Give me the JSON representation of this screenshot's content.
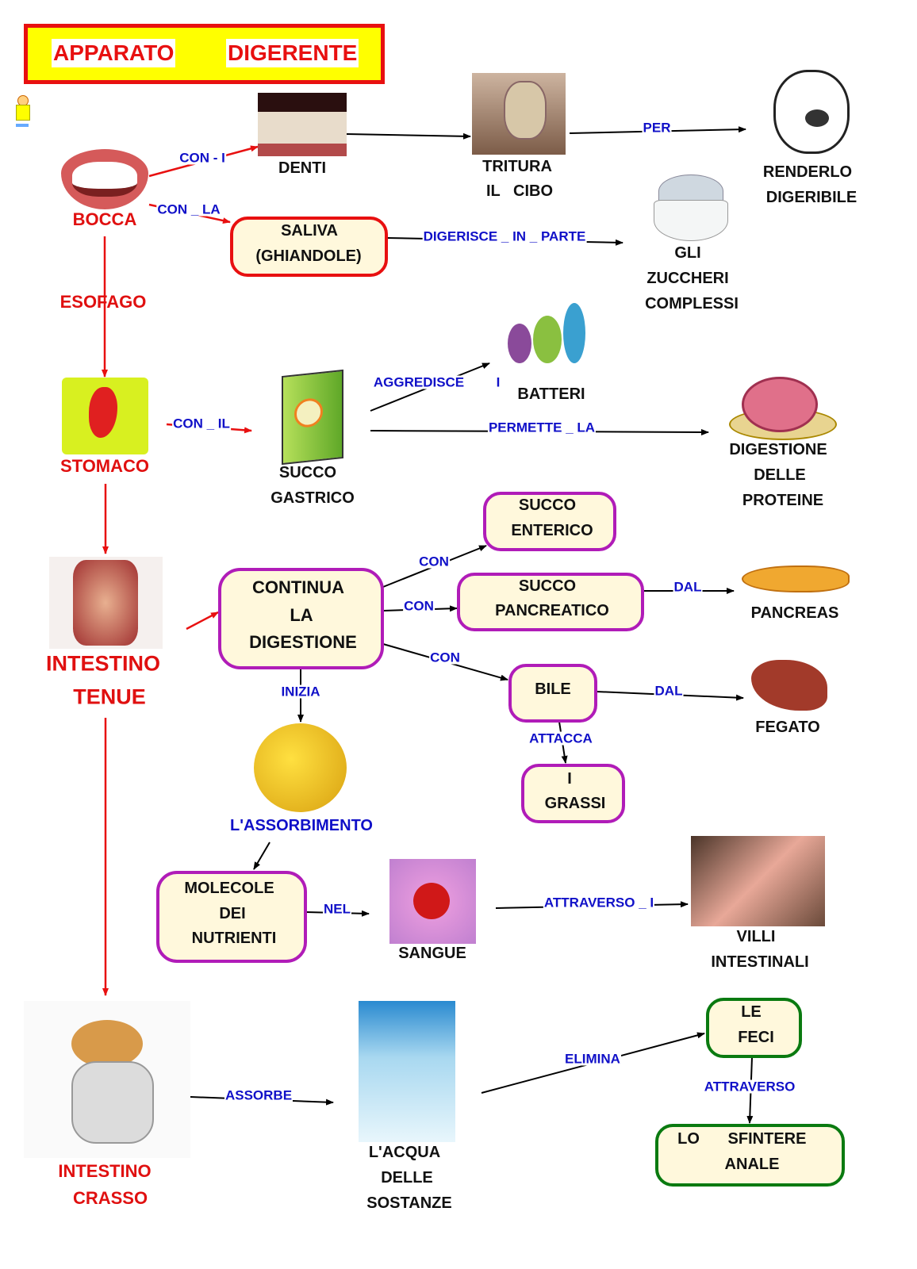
{
  "title": {
    "word1": "APPARATO",
    "word2": "DIGERENTE"
  },
  "colors": {
    "organ_text": "#e01010",
    "link_text": "#1010c8",
    "title_fill": "#ffff00",
    "title_border": "#e81010",
    "box_red": "#e81010",
    "box_purple": "#b01cb8",
    "box_green": "#0a7a10",
    "box_fill": "#fff8dc"
  },
  "icons": [
    "mascot-icon",
    "mouth-image",
    "teeth-image",
    "millstone-image",
    "stressed-face-image",
    "sugar-bowl-image",
    "stomach-image",
    "juice-box-image",
    "bacteria-image",
    "ham-image",
    "small-intestine-image",
    "pancreas-image",
    "liver-image",
    "sponge-image",
    "blood-cells-image",
    "villi-image",
    "large-intestine-image",
    "water-bubbles-image"
  ],
  "organs": {
    "bocca": "BOCCA",
    "esofago": "ESOFAGO",
    "stomaco": "STOMACO",
    "tenue": [
      "INTESTINO",
      "TENUE"
    ],
    "crasso": [
      "INTESTINO",
      "CRASSO"
    ]
  },
  "nodes": {
    "denti": "DENTI",
    "tritura": [
      "TRITURA",
      "IL   CIBO"
    ],
    "renderlo": [
      "RENDERLO",
      "DIGERIBILE"
    ],
    "saliva": [
      "SALIVA",
      "(GHIANDOLE)"
    ],
    "zuccheri": [
      "GLI",
      "ZUCCHERI",
      "COMPLESSI"
    ],
    "succo_gastrico": [
      "SUCCO",
      "GASTRICO"
    ],
    "batteri": "BATTERI",
    "proteine": [
      "DIGESTIONE",
      "DELLE",
      "PROTEINE"
    ],
    "succo_enterico": [
      "SUCCO",
      "ENTERICO"
    ],
    "succo_pancreatico": [
      "SUCCO",
      "PANCREATICO"
    ],
    "pancreas": "PANCREAS",
    "continua": [
      "CONTINUA",
      "LA",
      "DIGESTIONE"
    ],
    "bile": "BILE",
    "fegato": "FEGATO",
    "grassi": [
      "I",
      "GRASSI"
    ],
    "assorbimento": "L'ASSORBIMENTO",
    "molecole": [
      "MOLECOLE",
      "DEI",
      "NUTRIENTI"
    ],
    "sangue": "SANGUE",
    "villi": [
      "VILLI",
      "INTESTINALI"
    ],
    "acqua": [
      "L'ACQUA",
      "DELLE",
      "SOSTANZE"
    ],
    "feci": [
      "LE",
      "FECI"
    ],
    "sfintere": [
      "LO",
      "SFINTERE",
      "ANALE"
    ]
  },
  "links": {
    "con_i": "CON - I",
    "con_la": "CON _ LA",
    "per": "PER",
    "digerisce": "DIGERISCE _ IN _ PARTE",
    "con_il": "CON _ IL",
    "aggredisce": "AGGREDISCE",
    "aggredisce_i": "I",
    "permette": "PERMETTE _ LA",
    "con1": "CON",
    "con2": "CON",
    "con3": "CON",
    "dal1": "DAL",
    "dal2": "DAL",
    "attacca": "ATTACCA",
    "inizia": "INIZIA",
    "nel": "NEL",
    "attraverso_i": "ATTRAVERSO _ I",
    "assorbe": "ASSORBE",
    "elimina": "ELIMINA",
    "attraverso": "ATTRAVERSO"
  }
}
